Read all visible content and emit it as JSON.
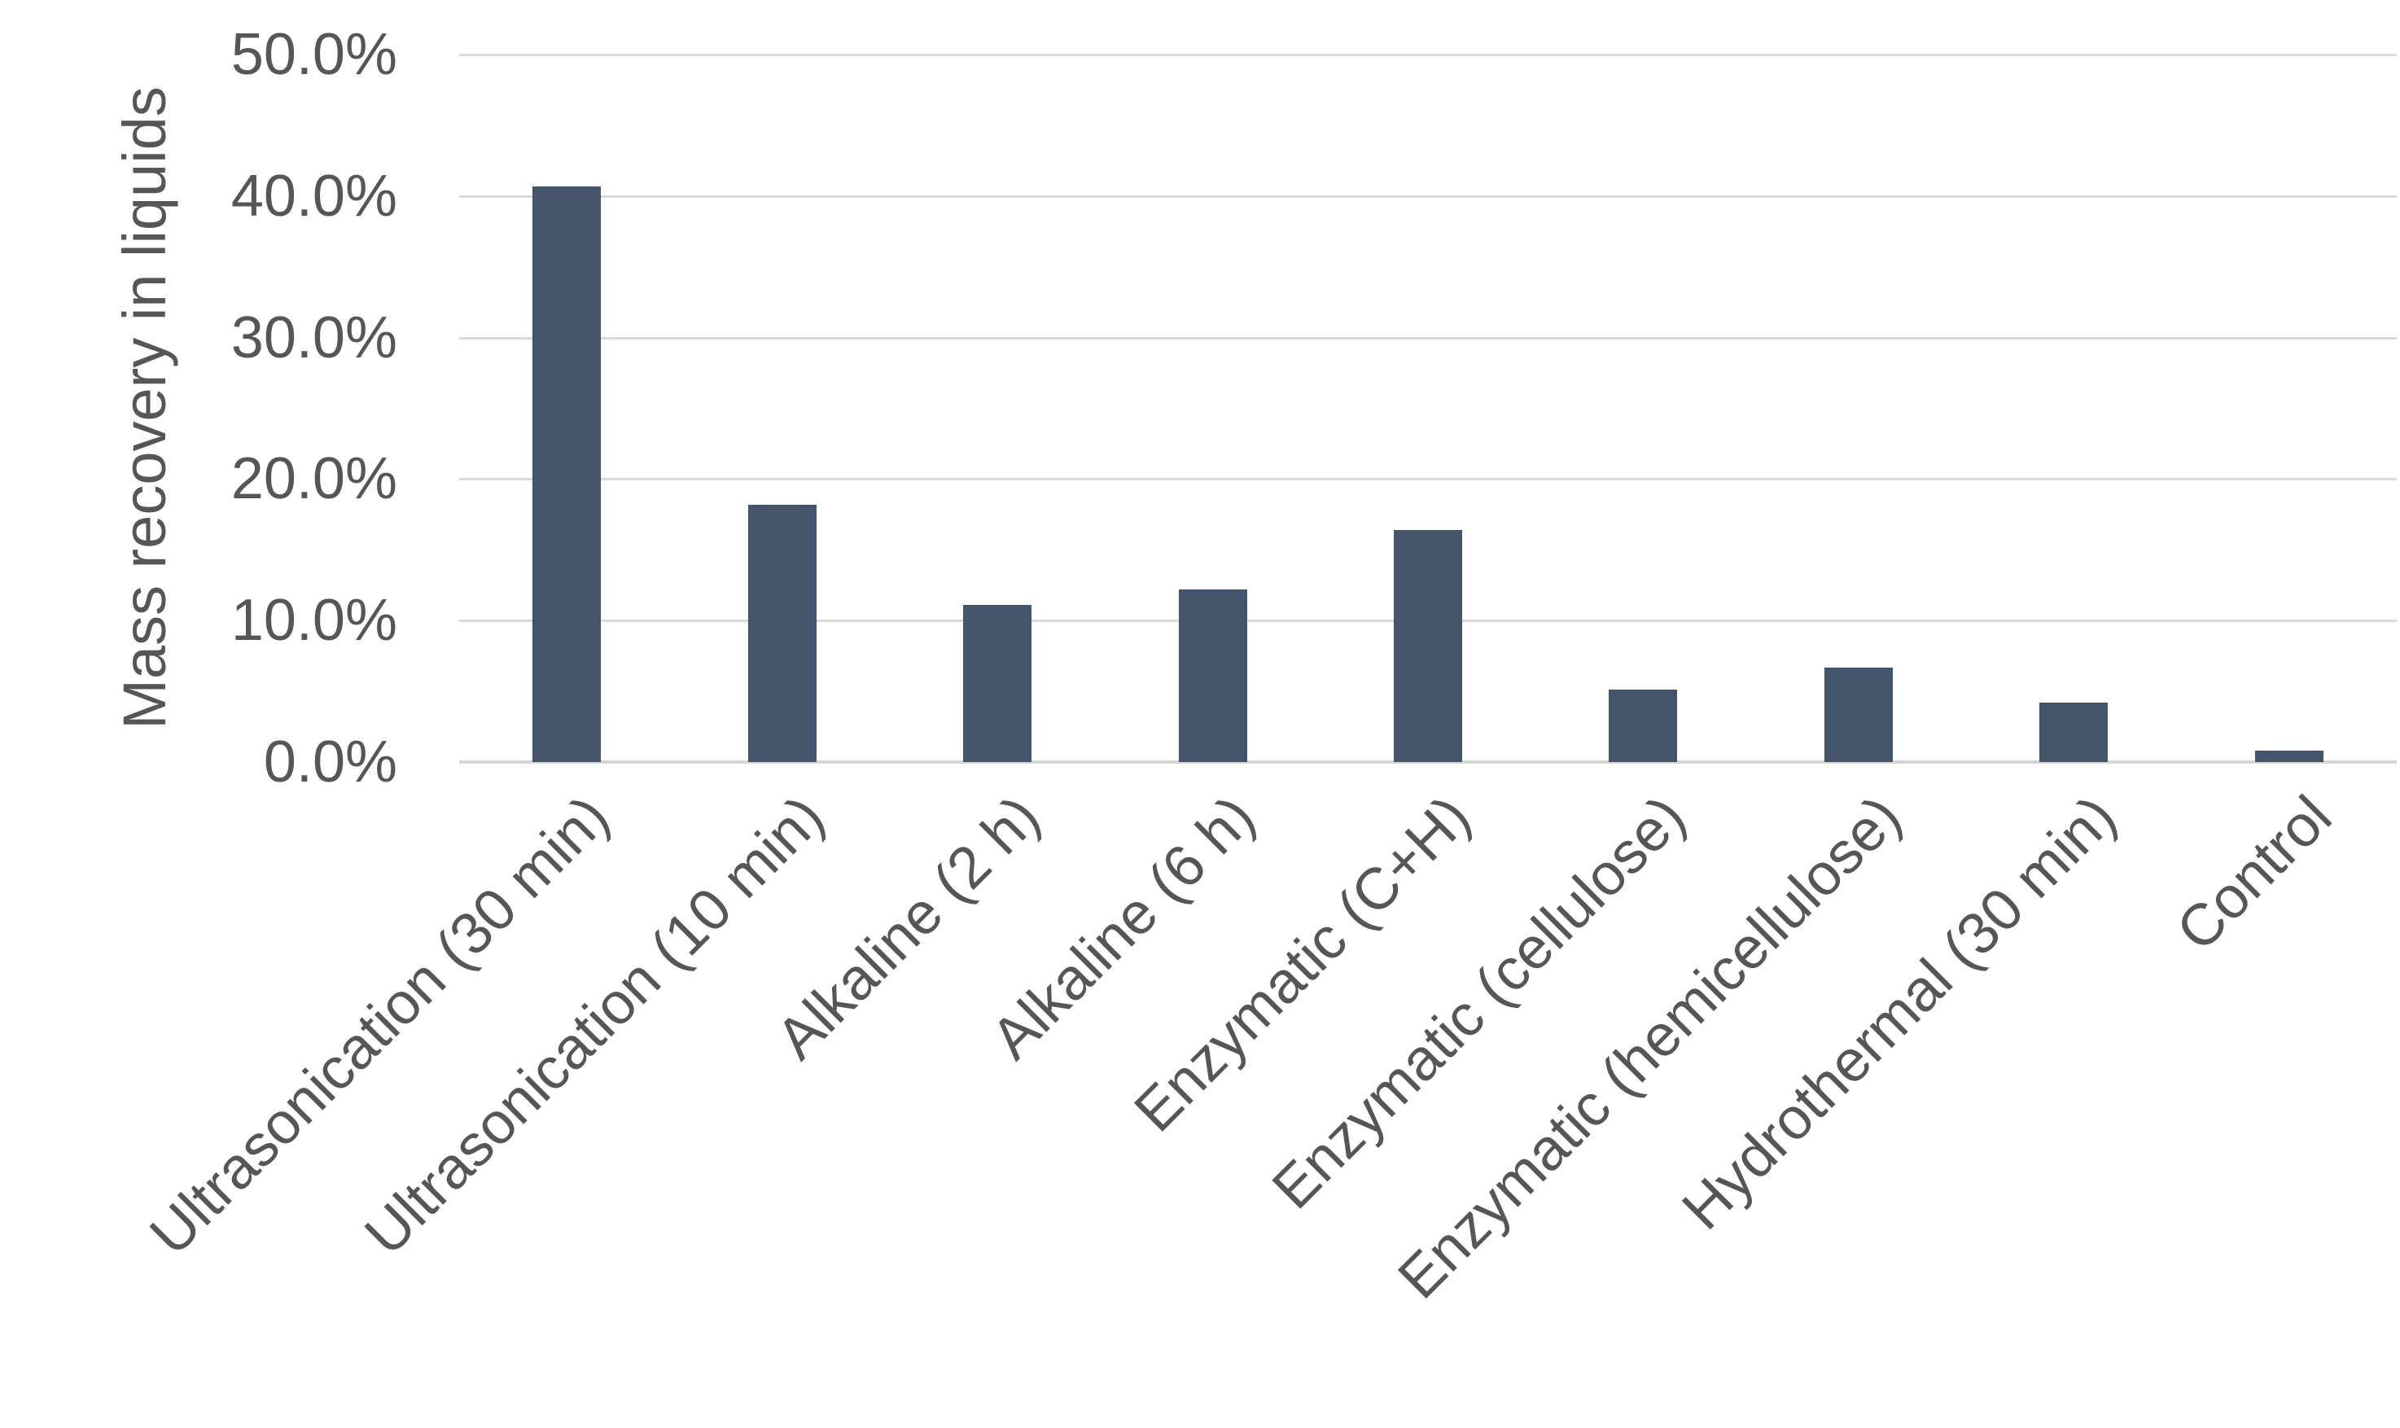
{
  "chart_data": {
    "type": "bar",
    "title": "",
    "xlabel": "",
    "ylabel": "Mass recovery in liquids",
    "categories": [
      "Ultrasonication (30 min)",
      "Ultrasonication (10 min)",
      "Alkaline (2 h)",
      "Alkaline (6 h)",
      "Enzymatic (C+H)",
      "Enzymatic (cellulose)",
      "Enzymatic (hemicellulose)",
      "Hydrothermal (30 min)",
      "Control"
    ],
    "values": [
      40.7,
      18.2,
      11.1,
      12.2,
      16.4,
      5.1,
      6.7,
      4.2,
      0.8
    ],
    "unit": "%",
    "y_ticks": [
      "0.0%",
      "10.0%",
      "20.0%",
      "30.0%",
      "40.0%",
      "50.0%"
    ],
    "y_tick_values": [
      0,
      10,
      20,
      30,
      40,
      50
    ],
    "ylim": [
      0,
      50
    ],
    "grid": "horizontal-on",
    "legend": "none",
    "colors": {
      "bar_fill": "#44546A",
      "gridline": "#D9D9D9",
      "axis_text": "#565656"
    }
  }
}
